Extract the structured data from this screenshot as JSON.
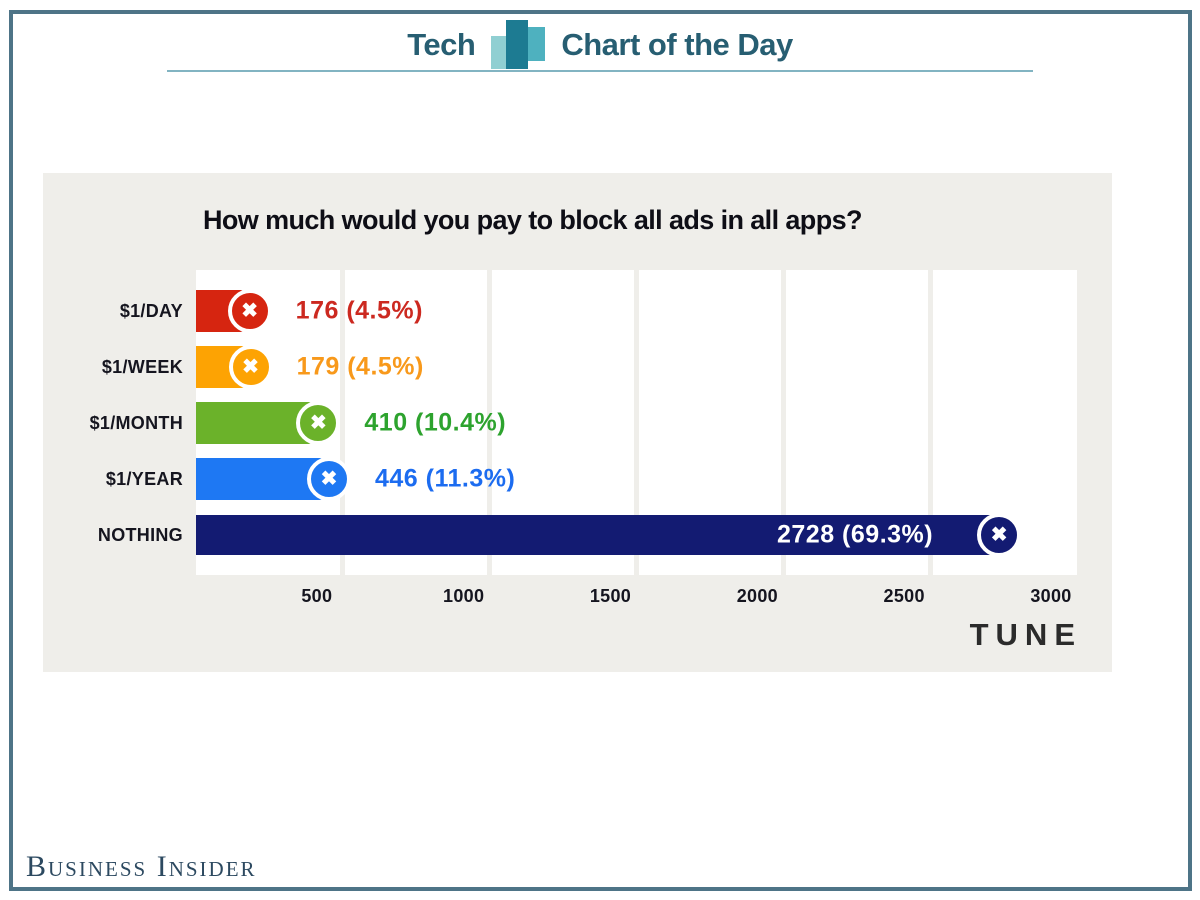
{
  "page": {
    "frame_border_color": "#4e7487"
  },
  "header": {
    "title_left": "Tech",
    "title_right": "Chart of the Day",
    "icon": "bar-chart-icon",
    "colors": {
      "text": "#275e72",
      "underline": "#82b4c2",
      "icon_bar_light": "#7cc7ca",
      "icon_bar_dark": "#1d7b92",
      "icon_bar_mid": "#3ba8b8"
    }
  },
  "icons": {
    "block_x": "✖"
  },
  "chart_data": {
    "type": "bar",
    "orientation": "horizontal",
    "title": "How much would you pay to block all ads in all apps?",
    "categories": [
      "$1/DAY",
      "$1/WEEK",
      "$1/MONTH",
      "$1/YEAR",
      "NOTHING"
    ],
    "values": [
      176,
      179,
      410,
      446,
      2728
    ],
    "percents": [
      "4.5%",
      "4.5%",
      "10.4%",
      "11.3%",
      "69.3%"
    ],
    "value_labels": [
      "176 (4.5%)",
      "179 (4.5%)",
      "410 (10.4%)",
      "446 (11.3%)",
      "2728 (69.3%)"
    ],
    "bar_colors": [
      "#d62510",
      "#fda303",
      "#6bb22a",
      "#1e78f3",
      "#131b72"
    ],
    "value_text_colors": [
      "#cc2920",
      "#f8991b",
      "#2da32e",
      "#1c6cf0",
      "#ffffff"
    ],
    "value_inside": [
      false,
      false,
      false,
      false,
      true
    ],
    "xlim": [
      0,
      3000
    ],
    "xticks": [
      500,
      1000,
      1500,
      2000,
      2500,
      3000
    ],
    "grid": true,
    "plot_bg": "#ffffff",
    "panel_bg": "#efeeea",
    "source": "TUNE"
  },
  "footer": {
    "brand": "Business Insider"
  }
}
